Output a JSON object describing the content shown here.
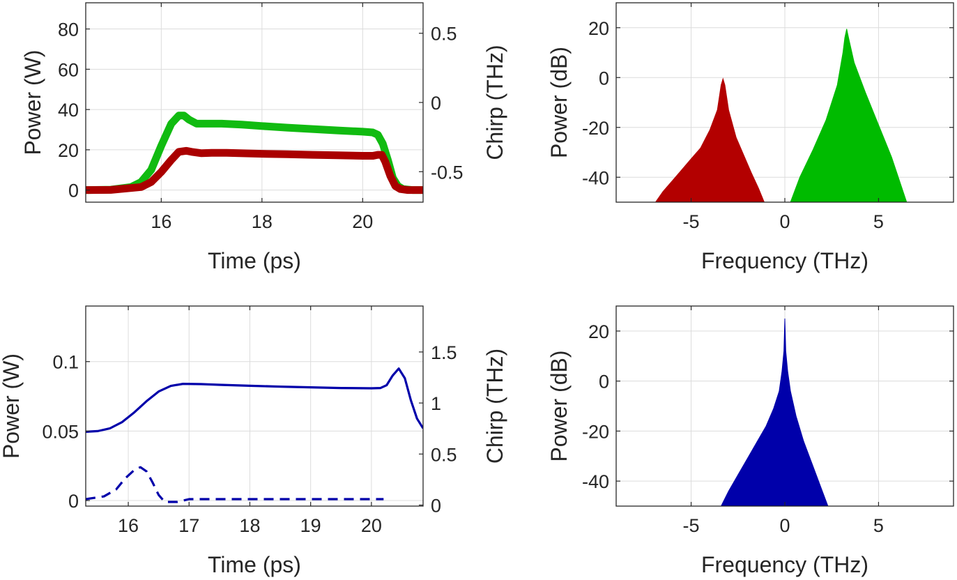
{
  "chart_data": [
    {
      "panel": "top-left",
      "type": "line",
      "xlabel": "Time (ps)",
      "ylabel": "Power (W)",
      "y2label": "Chirp (THz)",
      "xlim": [
        14.5,
        21.2
      ],
      "ylim": [
        -6,
        93
      ],
      "y2lim": [
        -0.72,
        0.72
      ],
      "xticks": [
        16,
        18,
        20
      ],
      "yticks": [
        0,
        20,
        40,
        60,
        80
      ],
      "y2ticks": [
        -0.5,
        0,
        0.5
      ],
      "grid": true,
      "series": [
        {
          "color": "#11bb11",
          "x": [
            14.5,
            15.0,
            15.4,
            15.6,
            15.8,
            16.0,
            16.2,
            16.35,
            16.45,
            16.55,
            16.7,
            16.9,
            17.2,
            17.6,
            18.0,
            18.5,
            19.0,
            19.5,
            20.0,
            20.2,
            20.3,
            20.4,
            20.5,
            20.6,
            20.7,
            20.8,
            21.0,
            21.2
          ],
          "y": [
            0,
            0.2,
            1.5,
            4,
            10,
            22,
            33,
            37,
            37,
            35,
            33,
            33,
            33,
            32.5,
            31.8,
            31,
            30.3,
            29.6,
            29,
            28.6,
            27.5,
            23,
            15,
            6,
            2,
            0.5,
            0,
            0
          ]
        },
        {
          "color": "#aa0000",
          "x": [
            14.5,
            15.0,
            15.6,
            15.8,
            16.0,
            16.2,
            16.35,
            16.5,
            16.6,
            16.8,
            17.0,
            17.3,
            18.0,
            18.5,
            19.0,
            19.5,
            20.0,
            20.2,
            20.3,
            20.38,
            20.45,
            20.55,
            20.65,
            20.75,
            20.9,
            21.2
          ],
          "y": [
            0,
            0.1,
            1.5,
            4,
            9,
            15,
            19,
            19.5,
            19,
            18.3,
            18.5,
            18.5,
            18,
            17.8,
            17.5,
            17.3,
            17,
            17,
            17.5,
            17.5,
            14,
            7,
            2,
            0.5,
            0,
            0
          ]
        }
      ]
    },
    {
      "panel": "top-right",
      "type": "area",
      "xlabel": "Frequency (THz)",
      "ylabel": "Power (dB)",
      "xlim": [
        -9,
        9
      ],
      "ylim": [
        -50,
        30
      ],
      "xticks": [
        -5,
        0,
        5
      ],
      "yticks": [
        -40,
        -20,
        0,
        20
      ],
      "grid": true,
      "series": [
        {
          "color": "#b30000",
          "x": [
            -6.9,
            -6.5,
            -6.0,
            -5.5,
            -5.0,
            -4.5,
            -4.0,
            -3.6,
            -3.4,
            -3.3,
            -3.2,
            -3.0,
            -2.6,
            -2.2,
            -1.8,
            -1.4,
            -1.1
          ],
          "y": [
            -50,
            -45.7,
            -41.4,
            -37,
            -32.6,
            -28.3,
            -21,
            -13,
            -3,
            -0.5,
            -3,
            -13,
            -24,
            -31,
            -38,
            -44.5,
            -50
          ]
        },
        {
          "color": "#00bb00",
          "x": [
            0.3,
            0.8,
            1.5,
            2.2,
            2.8,
            3.1,
            3.2,
            3.3,
            3.4,
            3.7,
            4.3,
            5.0,
            5.7,
            6.5
          ],
          "y": [
            -50,
            -40,
            -29,
            -17,
            -3,
            10,
            16,
            19.5,
            16,
            6,
            -6,
            -19,
            -32,
            -50
          ]
        }
      ]
    },
    {
      "panel": "bottom-left",
      "type": "line",
      "xlabel": "Time (ps)",
      "ylabel": "Power (W)",
      "y2label": "Chirp (THz)",
      "xlim": [
        15.3,
        20.85
      ],
      "ylim": [
        -0.004,
        0.14
      ],
      "y2lim": [
        -0.01,
        1.95
      ],
      "xticks": [
        16,
        17,
        18,
        19,
        20
      ],
      "yticks": [
        0,
        0.05,
        0.1
      ],
      "y2ticks": [
        0,
        0.5,
        1,
        1.5
      ],
      "grid": true,
      "series": [
        {
          "color": "#0000aa",
          "style": "solid",
          "x": [
            15.3,
            15.5,
            15.7,
            15.9,
            16.1,
            16.3,
            16.5,
            16.7,
            16.9,
            17.2,
            17.5,
            18.0,
            18.5,
            19.0,
            19.5,
            20.0,
            20.15,
            20.25,
            20.35,
            20.45,
            20.55,
            20.65,
            20.75,
            20.85
          ],
          "y": [
            0.0495,
            0.05,
            0.052,
            0.0565,
            0.0635,
            0.0715,
            0.0785,
            0.0825,
            0.084,
            0.0838,
            0.0833,
            0.0826,
            0.082,
            0.0815,
            0.081,
            0.0808,
            0.081,
            0.083,
            0.09,
            0.095,
            0.088,
            0.072,
            0.059,
            0.052
          ]
        },
        {
          "color": "#0000aa",
          "style": "dashed",
          "x": [
            15.3,
            15.6,
            15.8,
            15.95,
            16.1,
            16.2,
            16.3,
            16.4,
            16.5,
            16.6,
            16.8,
            17.0,
            17.5,
            18.0,
            18.5,
            19.0,
            19.5,
            20.0,
            20.2
          ],
          "y": [
            0.001,
            0.003,
            0.008,
            0.016,
            0.022,
            0.024,
            0.021,
            0.013,
            0.004,
            -0.001,
            -0.001,
            0.001,
            0.001,
            0.001,
            0.001,
            0.001,
            0.001,
            0.001,
            0.001
          ]
        }
      ]
    },
    {
      "panel": "bottom-right",
      "type": "area",
      "xlabel": "Frequency (THz)",
      "ylabel": "Power (dB)",
      "xlim": [
        -9,
        9
      ],
      "ylim": [
        -50,
        30
      ],
      "xticks": [
        -5,
        0,
        5
      ],
      "yticks": [
        -40,
        -20,
        0,
        20
      ],
      "grid": true,
      "series": [
        {
          "color": "#0000aa",
          "x": [
            -3.4,
            -3.0,
            -2.5,
            -2.0,
            -1.5,
            -1.0,
            -0.6,
            -0.3,
            -0.15,
            -0.05,
            0.0,
            0.05,
            0.15,
            0.3,
            0.6,
            1.0,
            1.5,
            1.9,
            2.3
          ],
          "y": [
            -50,
            -44,
            -37.5,
            -31,
            -24.5,
            -18,
            -11,
            -4,
            4,
            12,
            25,
            12,
            4,
            -4,
            -14,
            -24,
            -34,
            -42,
            -50
          ]
        }
      ]
    }
  ]
}
